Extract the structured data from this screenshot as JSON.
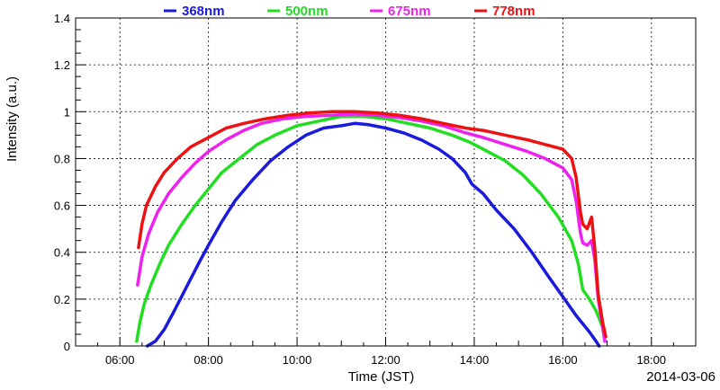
{
  "chart_data": {
    "type": "line",
    "title": "",
    "xlabel": "Time (JST)",
    "ylabel": "Intensity (a.u.)",
    "date_label": "2014-03-06",
    "xlim": [
      5.0,
      19.0
    ],
    "ylim": [
      0,
      1.4
    ],
    "x_ticks": [
      {
        "value": 6,
        "label": "06:00"
      },
      {
        "value": 8,
        "label": "08:00"
      },
      {
        "value": 10,
        "label": "10:00"
      },
      {
        "value": 12,
        "label": "12:00"
      },
      {
        "value": 14,
        "label": "14:00"
      },
      {
        "value": 16,
        "label": "16:00"
      },
      {
        "value": 18,
        "label": "18:00"
      }
    ],
    "y_ticks": [
      {
        "value": 0,
        "label": "0"
      },
      {
        "value": 0.2,
        "label": "0.2"
      },
      {
        "value": 0.4,
        "label": "0.4"
      },
      {
        "value": 0.6,
        "label": "0.6"
      },
      {
        "value": 0.8,
        "label": "0.8"
      },
      {
        "value": 1.0,
        "label": "1"
      },
      {
        "value": 1.2,
        "label": "1.2"
      },
      {
        "value": 1.4,
        "label": "1.4"
      }
    ],
    "grid": true,
    "legend_position": "top",
    "series": [
      {
        "name": "368nm",
        "color": "#1a1adc",
        "x": [
          6.62,
          6.8,
          7.0,
          7.2,
          7.5,
          7.8,
          8.0,
          8.3,
          8.6,
          9.0,
          9.4,
          9.8,
          10.2,
          10.6,
          11.0,
          11.3,
          11.6,
          12.0,
          12.4,
          12.8,
          13.2,
          13.5,
          13.8,
          13.95,
          14.2,
          14.5,
          14.9,
          15.3,
          15.7,
          16.0,
          16.3,
          16.6,
          16.75,
          16.82
        ],
        "y": [
          0.0,
          0.02,
          0.07,
          0.14,
          0.25,
          0.36,
          0.43,
          0.53,
          0.62,
          0.71,
          0.79,
          0.85,
          0.9,
          0.93,
          0.94,
          0.95,
          0.945,
          0.93,
          0.91,
          0.88,
          0.84,
          0.8,
          0.74,
          0.69,
          0.65,
          0.58,
          0.5,
          0.4,
          0.29,
          0.21,
          0.13,
          0.06,
          0.02,
          0.0
        ]
      },
      {
        "name": "500nm",
        "color": "#22dd22",
        "x": [
          6.38,
          6.45,
          6.55,
          6.7,
          6.9,
          7.1,
          7.4,
          7.7,
          8.0,
          8.3,
          8.7,
          9.1,
          9.5,
          10.0,
          10.5,
          11.0,
          11.5,
          12.0,
          12.5,
          13.0,
          13.5,
          13.9,
          14.3,
          14.7,
          15.1,
          15.5,
          15.9,
          16.2,
          16.35,
          16.45,
          16.6,
          16.75,
          16.9,
          16.95
        ],
        "y": [
          0.02,
          0.1,
          0.18,
          0.26,
          0.35,
          0.43,
          0.52,
          0.6,
          0.67,
          0.74,
          0.8,
          0.86,
          0.9,
          0.94,
          0.96,
          0.98,
          0.98,
          0.97,
          0.95,
          0.93,
          0.9,
          0.87,
          0.83,
          0.79,
          0.73,
          0.65,
          0.55,
          0.45,
          0.35,
          0.24,
          0.2,
          0.15,
          0.08,
          0.02
        ]
      },
      {
        "name": "675nm",
        "color": "#ee22ee",
        "x": [
          6.4,
          6.5,
          6.65,
          6.85,
          7.1,
          7.4,
          7.7,
          8.0,
          8.4,
          8.8,
          9.2,
          9.7,
          10.2,
          10.8,
          11.3,
          11.8,
          12.3,
          12.8,
          13.3,
          13.8,
          14.2,
          14.7,
          15.2,
          15.6,
          16.0,
          16.2,
          16.3,
          16.4,
          16.45,
          16.55,
          16.65,
          16.72,
          16.8,
          16.9,
          16.95
        ],
        "y": [
          0.26,
          0.38,
          0.48,
          0.57,
          0.65,
          0.72,
          0.78,
          0.83,
          0.88,
          0.92,
          0.95,
          0.97,
          0.98,
          0.985,
          0.99,
          0.985,
          0.975,
          0.96,
          0.94,
          0.91,
          0.89,
          0.86,
          0.83,
          0.8,
          0.76,
          0.71,
          0.62,
          0.48,
          0.44,
          0.43,
          0.45,
          0.37,
          0.2,
          0.08,
          0.02
        ]
      },
      {
        "name": "778nm",
        "color": "#ee1111",
        "x": [
          6.42,
          6.5,
          6.6,
          6.8,
          7.0,
          7.3,
          7.6,
          8.0,
          8.4,
          8.8,
          9.3,
          9.8,
          10.3,
          10.8,
          11.3,
          11.8,
          12.3,
          12.8,
          13.3,
          13.8,
          14.2,
          14.7,
          15.2,
          15.6,
          16.0,
          16.2,
          16.3,
          16.4,
          16.45,
          16.55,
          16.65,
          16.72,
          16.8,
          16.9,
          16.97
        ],
        "y": [
          0.42,
          0.52,
          0.6,
          0.68,
          0.74,
          0.8,
          0.85,
          0.89,
          0.93,
          0.95,
          0.97,
          0.985,
          0.995,
          1.0,
          1.0,
          0.995,
          0.985,
          0.97,
          0.95,
          0.93,
          0.92,
          0.9,
          0.88,
          0.86,
          0.84,
          0.8,
          0.72,
          0.57,
          0.52,
          0.5,
          0.55,
          0.42,
          0.22,
          0.1,
          0.04
        ]
      }
    ]
  }
}
